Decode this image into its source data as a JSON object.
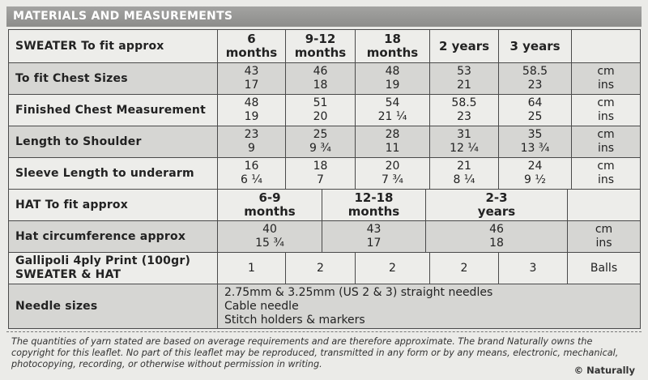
{
  "header": {
    "title": "MATERIALS AND MEASUREMENTS"
  },
  "sweater": {
    "header": {
      "label": "SWEATER To fit approx",
      "sizes": [
        "6\nmonths",
        "9-12\nmonths",
        "18\nmonths",
        "2 years",
        "3 years"
      ]
    },
    "rows": [
      {
        "label": "To fit Chest Sizes",
        "values": [
          [
            "43",
            "17"
          ],
          [
            "46",
            "18"
          ],
          [
            "48",
            "19"
          ],
          [
            "53",
            "21"
          ],
          [
            "58.5",
            "23"
          ]
        ],
        "units": [
          "cm",
          "ins"
        ]
      },
      {
        "label": "Finished Chest Measurement",
        "values": [
          [
            "48",
            "19"
          ],
          [
            "51",
            "20"
          ],
          [
            "54",
            "21 ¼"
          ],
          [
            "58.5",
            "23"
          ],
          [
            "64",
            "25"
          ]
        ],
        "units": [
          "cm",
          "ins"
        ]
      },
      {
        "label": "Length to Shoulder",
        "values": [
          [
            "23",
            "9"
          ],
          [
            "25",
            "9 ¾"
          ],
          [
            "28",
            "11"
          ],
          [
            "31",
            "12 ¼"
          ],
          [
            "35",
            "13 ¾"
          ]
        ],
        "units": [
          "cm",
          "ins"
        ]
      },
      {
        "label": "Sleeve Length to underarm",
        "values": [
          [
            "16",
            "6 ¼"
          ],
          [
            "18",
            "7"
          ],
          [
            "20",
            "7 ¾"
          ],
          [
            "21",
            "8 ¼"
          ],
          [
            "24",
            "9 ½"
          ]
        ],
        "units": [
          "cm",
          "ins"
        ]
      }
    ]
  },
  "hat": {
    "header": {
      "label": "HAT To fit approx",
      "sizes": [
        "6-9\nmonths",
        "12-18\nmonths",
        "2-3\nyears"
      ]
    },
    "rows": [
      {
        "label": "Hat circumference approx",
        "values": [
          [
            "40",
            "15 ¾"
          ],
          [
            "43",
            "17"
          ],
          [
            "46",
            "18"
          ]
        ],
        "units": [
          "cm",
          "ins"
        ]
      }
    ]
  },
  "yarn": {
    "label": "Gallipoli 4ply Print (100gr)\nSWEATER & HAT",
    "values": [
      "1",
      "2",
      "2",
      "2",
      "3"
    ],
    "unit": "Balls"
  },
  "needles": {
    "label": "Needle sizes",
    "items": [
      "2.75mm & 3.25mm (US 2 & 3) straight needles",
      "Cable needle",
      "Stitch holders & markers"
    ]
  },
  "footer": {
    "disclaimer": "The quantities of yarn stated are based on average requirements and are therefore approximate. The brand Naturally owns the copyright for this leaflet. No part of this leaflet may be reproduced, transmitted in any form or by any means, electronic, mechanical, photocopying, recording, or otherwise without permission in writing.",
    "copyright": "© Naturally"
  }
}
